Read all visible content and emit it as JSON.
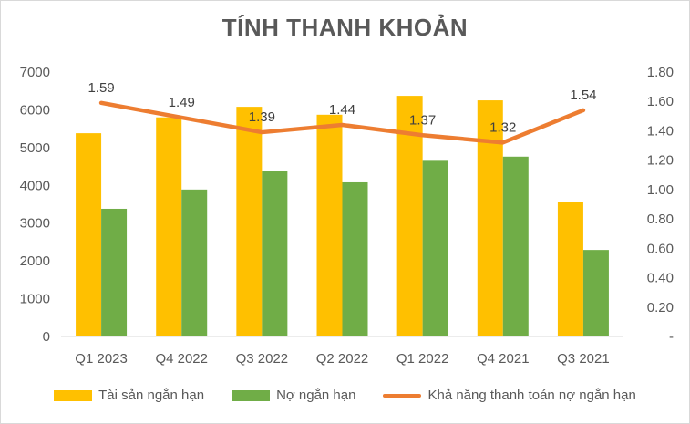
{
  "chart_data": {
    "type": "bar",
    "title": "TÍNH THANH KHOẢN",
    "categories": [
      "Q1 2023",
      "Q4 2022",
      "Q3 2022",
      "Q2 2022",
      "Q1 2022",
      "Q4 2021",
      "Q3 2021"
    ],
    "series": [
      {
        "name": "Tài sản ngắn hạn",
        "type": "bar",
        "axis": "left",
        "color": "#FFC000",
        "values": [
          5380,
          5800,
          6080,
          5870,
          6370,
          6250,
          3550
        ]
      },
      {
        "name": "Nợ ngắn hạn",
        "type": "bar",
        "axis": "left",
        "color": "#70AD47",
        "values": [
          3380,
          3890,
          4370,
          4080,
          4650,
          4760,
          2290
        ]
      },
      {
        "name": "Khả năng thanh toán nợ ngắn hạn",
        "type": "line",
        "axis": "right",
        "color": "#ED7D31",
        "values": [
          1.59,
          1.49,
          1.39,
          1.44,
          1.37,
          1.32,
          1.54
        ],
        "labels": [
          "1.59",
          "1.49",
          "1.39",
          "1.44",
          "1.37",
          "1.32",
          "1.54"
        ]
      }
    ],
    "ylim": [
      0,
      7000
    ],
    "y_ticks": [
      "0",
      "1000",
      "2000",
      "3000",
      "4000",
      "5000",
      "6000",
      "7000"
    ],
    "y2lim": [
      0,
      1.8
    ],
    "y2_ticks": [
      "-",
      "0.20",
      "0.40",
      "0.60",
      "0.80",
      "1.00",
      "1.20",
      "1.40",
      "1.60",
      "1.80"
    ],
    "grid": false,
    "legend_position": "bottom"
  }
}
